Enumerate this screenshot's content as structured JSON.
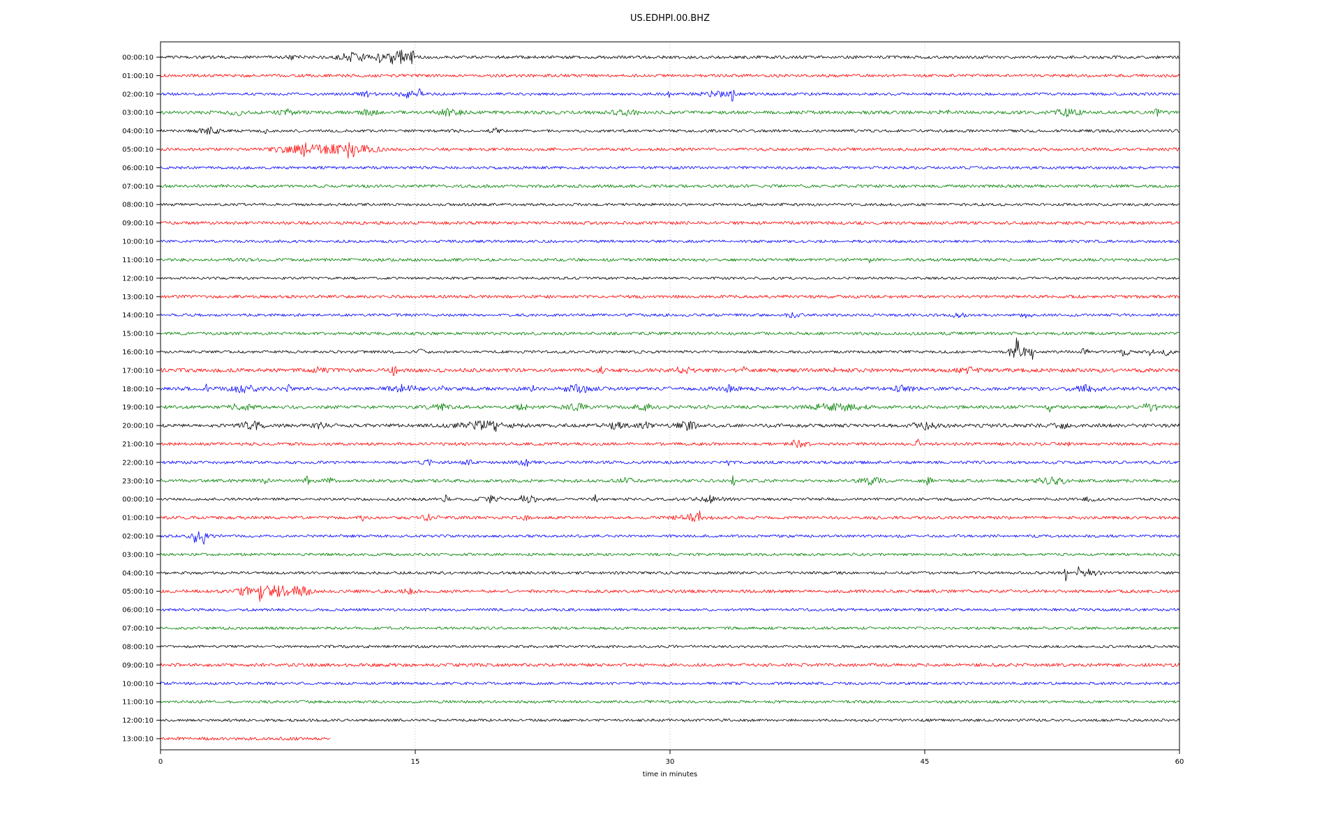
{
  "title": "US.EDHPI.00.BHZ",
  "xlabel": "time in minutes",
  "chart_data": {
    "type": "line",
    "subtype": "seismic-dayplot-helicorder",
    "station": "US.EDHPI.00.BHZ",
    "x_range_minutes": [
      0,
      60
    ],
    "x_ticks": [
      "0",
      "15",
      "30",
      "45",
      "60"
    ],
    "x_tick_values": [
      0,
      15,
      30,
      45,
      60
    ],
    "grid": "vertical dotted gridlines at 15, 30 and 45 minutes",
    "grid_color": "#b0b0b0",
    "color_cycle": [
      "#000000",
      "#ff0000",
      "#0000ff",
      "#008000"
    ],
    "rows": [
      {
        "label": "00:00:10",
        "color": "#000000",
        "noise": 2.2,
        "end": 60,
        "events": [
          [
            7.6,
            0.3,
            2.5
          ],
          [
            11.3,
            0.8,
            6
          ],
          [
            12.9,
            0.18,
            8
          ],
          [
            13.6,
            0.25,
            7
          ],
          [
            14.2,
            0.5,
            9
          ],
          [
            14.85,
            0.12,
            8
          ]
        ]
      },
      {
        "label": "01:00:10",
        "color": "#ff0000",
        "noise": 2.2,
        "end": 60,
        "events": []
      },
      {
        "label": "02:00:10",
        "color": "#0000ff",
        "noise": 2.0,
        "end": 60,
        "events": [
          [
            12.2,
            0.4,
            3
          ],
          [
            14.5,
            0.5,
            4
          ],
          [
            15.3,
            0.12,
            7
          ],
          [
            30.0,
            0.08,
            10
          ],
          [
            32.8,
            1.0,
            3
          ],
          [
            33.7,
            0.08,
            13
          ]
        ]
      },
      {
        "label": "03:00:10",
        "color": "#008000",
        "noise": 2.4,
        "end": 60,
        "events": [
          [
            4.5,
            0.4,
            3.5
          ],
          [
            7.4,
            0.5,
            3.5
          ],
          [
            12.3,
            0.5,
            3
          ],
          [
            17.0,
            0.8,
            3.5
          ],
          [
            27.4,
            0.7,
            3.5
          ],
          [
            46.2,
            0.3,
            3
          ],
          [
            53.4,
            0.8,
            4
          ],
          [
            58.7,
            0.15,
            5
          ]
        ]
      },
      {
        "label": "04:00:10",
        "color": "#000000",
        "noise": 2.0,
        "end": 60,
        "events": [
          [
            2.9,
            0.6,
            4
          ],
          [
            6.2,
            0.08,
            4
          ],
          [
            17.5,
            0.4,
            2.5
          ],
          [
            19.7,
            0.3,
            2.5
          ]
        ]
      },
      {
        "label": "05:00:10",
        "color": "#ff0000",
        "noise": 2.2,
        "end": 60,
        "events": [
          [
            7.5,
            0.9,
            4
          ],
          [
            8.4,
            0.3,
            6
          ],
          [
            9.2,
            0.8,
            5
          ],
          [
            10.3,
            0.6,
            5
          ],
          [
            11.0,
            0.1,
            21
          ],
          [
            11.35,
            0.1,
            11
          ],
          [
            11.9,
            0.4,
            4
          ],
          [
            12.6,
            0.4,
            3
          ]
        ]
      },
      {
        "label": "06:00:10",
        "color": "#0000ff",
        "noise": 2.0,
        "end": 60,
        "events": []
      },
      {
        "label": "07:00:10",
        "color": "#008000",
        "noise": 2.2,
        "end": 60,
        "events": []
      },
      {
        "label": "08:00:10",
        "color": "#000000",
        "noise": 2.0,
        "end": 60,
        "events": []
      },
      {
        "label": "09:00:10",
        "color": "#ff0000",
        "noise": 2.3,
        "end": 60,
        "events": []
      },
      {
        "label": "10:00:10",
        "color": "#0000ff",
        "noise": 2.0,
        "end": 60,
        "events": []
      },
      {
        "label": "11:00:10",
        "color": "#008000",
        "noise": 2.2,
        "end": 60,
        "events": [
          [
            41.8,
            0.08,
            3.5
          ]
        ]
      },
      {
        "label": "12:00:10",
        "color": "#000000",
        "noise": 1.8,
        "end": 60,
        "events": []
      },
      {
        "label": "13:00:10",
        "color": "#ff0000",
        "noise": 2.2,
        "end": 60,
        "events": []
      },
      {
        "label": "14:00:10",
        "color": "#0000ff",
        "noise": 2.0,
        "end": 60,
        "events": [
          [
            37.3,
            0.4,
            2.6
          ],
          [
            47.0,
            0.5,
            2.4
          ],
          [
            51.0,
            0.4,
            2.6
          ]
        ]
      },
      {
        "label": "15:00:10",
        "color": "#008000",
        "noise": 2.2,
        "end": 60,
        "events": []
      },
      {
        "label": "16:00:10",
        "color": "#000000",
        "noise": 2.0,
        "end": 60,
        "events": [
          [
            15.4,
            0.3,
            2.8
          ],
          [
            50.2,
            0.3,
            8
          ],
          [
            50.45,
            0.1,
            26
          ],
          [
            50.9,
            0.25,
            9
          ],
          [
            51.3,
            0.1,
            12
          ],
          [
            54.4,
            0.2,
            6
          ],
          [
            56.8,
            0.3,
            5
          ],
          [
            58.3,
            0.15,
            7
          ],
          [
            59.3,
            0.3,
            4
          ]
        ]
      },
      {
        "label": "17:00:10",
        "color": "#ff0000",
        "noise": 2.8,
        "end": 60,
        "events": [
          [
            9.3,
            0.5,
            3
          ],
          [
            13.75,
            0.15,
            6
          ],
          [
            26.0,
            0.3,
            3
          ],
          [
            30.8,
            0.5,
            3.5
          ],
          [
            34.4,
            0.1,
            5
          ],
          [
            39.8,
            0.15,
            4
          ],
          [
            47.5,
            0.5,
            3
          ]
        ]
      },
      {
        "label": "18:00:10",
        "color": "#0000ff",
        "noise": 2.6,
        "end": 60,
        "events": [
          [
            2.75,
            0.12,
            6
          ],
          [
            4.9,
            0.8,
            4
          ],
          [
            7.5,
            0.1,
            6
          ],
          [
            14.3,
            0.8,
            4
          ],
          [
            16.5,
            0.12,
            5
          ],
          [
            21.9,
            0.1,
            5
          ],
          [
            24.6,
            0.8,
            4
          ],
          [
            33.4,
            0.5,
            3.5
          ],
          [
            43.8,
            0.6,
            3.5
          ],
          [
            54.4,
            0.8,
            4
          ]
        ]
      },
      {
        "label": "19:00:10",
        "color": "#008000",
        "noise": 2.4,
        "end": 60,
        "events": [
          [
            4.7,
            0.7,
            4
          ],
          [
            16.4,
            0.5,
            4
          ],
          [
            21.3,
            0.3,
            3.5
          ],
          [
            24.5,
            0.7,
            3.5
          ],
          [
            28.5,
            0.6,
            3.5
          ],
          [
            32.2,
            0.1,
            5
          ],
          [
            39.8,
            1.4,
            4.5
          ],
          [
            52.3,
            0.12,
            6
          ],
          [
            58.3,
            0.5,
            4.5
          ]
        ]
      },
      {
        "label": "20:00:10",
        "color": "#000000",
        "noise": 2.6,
        "end": 60,
        "events": [
          [
            5.4,
            0.6,
            5
          ],
          [
            9.4,
            0.3,
            4
          ],
          [
            19.0,
            1.3,
            4.5
          ],
          [
            19.7,
            0.1,
            6
          ],
          [
            26.7,
            0.6,
            4
          ],
          [
            28.5,
            0.3,
            4
          ],
          [
            30.9,
            0.6,
            5
          ],
          [
            45.1,
            0.7,
            4.5
          ],
          [
            53.0,
            0.5,
            3
          ]
        ]
      },
      {
        "label": "21:00:10",
        "color": "#ff0000",
        "noise": 2.2,
        "end": 60,
        "events": [
          [
            37.4,
            0.12,
            8
          ],
          [
            37.7,
            0.4,
            3.5
          ],
          [
            44.6,
            0.12,
            6
          ],
          [
            53.3,
            0.2,
            3
          ]
        ]
      },
      {
        "label": "22:00:10",
        "color": "#0000ff",
        "noise": 2.2,
        "end": 60,
        "events": [
          [
            15.7,
            0.3,
            3
          ],
          [
            18.1,
            0.3,
            3
          ],
          [
            21.5,
            0.35,
            6
          ],
          [
            33.4,
            0.12,
            4
          ]
        ]
      },
      {
        "label": "23:00:10",
        "color": "#008000",
        "noise": 2.3,
        "end": 60,
        "events": [
          [
            6.2,
            0.5,
            3.5
          ],
          [
            8.6,
            0.12,
            8
          ],
          [
            10.0,
            0.3,
            3
          ],
          [
            27.5,
            0.5,
            3
          ],
          [
            33.7,
            0.1,
            9
          ],
          [
            41.8,
            0.6,
            4
          ],
          [
            45.2,
            0.18,
            5
          ],
          [
            52.5,
            1.0,
            3.5
          ]
        ]
      },
      {
        "label": "00:00:10",
        "color": "#000000",
        "noise": 2.0,
        "end": 60,
        "events": [
          [
            16.8,
            0.15,
            6
          ],
          [
            19.4,
            0.6,
            4
          ],
          [
            21.3,
            0.08,
            12
          ],
          [
            21.8,
            0.4,
            4
          ],
          [
            25.6,
            0.12,
            5
          ],
          [
            32.3,
            0.8,
            4
          ],
          [
            46.6,
            0.08,
            4
          ],
          [
            54.7,
            0.3,
            3
          ]
        ]
      },
      {
        "label": "01:00:10",
        "color": "#ff0000",
        "noise": 2.2,
        "end": 60,
        "events": [
          [
            11.9,
            0.08,
            4
          ],
          [
            15.9,
            0.5,
            3.5
          ],
          [
            21.5,
            0.1,
            7
          ],
          [
            21.85,
            0.1,
            6
          ],
          [
            31.2,
            0.8,
            4
          ],
          [
            31.7,
            0.1,
            8
          ]
        ]
      },
      {
        "label": "02:00:10",
        "color": "#0000ff",
        "noise": 2.0,
        "end": 60,
        "events": [
          [
            2.05,
            0.1,
            7
          ],
          [
            2.3,
            0.5,
            5
          ],
          [
            2.55,
            0.1,
            7
          ]
        ]
      },
      {
        "label": "03:00:10",
        "color": "#008000",
        "noise": 2.0,
        "end": 60,
        "events": []
      },
      {
        "label": "04:00:10",
        "color": "#000000",
        "noise": 2.0,
        "end": 60,
        "events": [
          [
            53.3,
            0.12,
            10
          ],
          [
            54.0,
            0.12,
            9
          ],
          [
            54.6,
            0.3,
            5
          ],
          [
            55.3,
            0.4,
            3
          ]
        ]
      },
      {
        "label": "05:00:10",
        "color": "#ff0000",
        "noise": 2.3,
        "end": 60,
        "events": [
          [
            5.0,
            0.5,
            5
          ],
          [
            5.9,
            0.1,
            22
          ],
          [
            6.25,
            0.09,
            24
          ],
          [
            6.8,
            0.6,
            7
          ],
          [
            7.3,
            0.1,
            9
          ],
          [
            7.9,
            0.5,
            6
          ],
          [
            8.6,
            0.4,
            4
          ],
          [
            14.6,
            0.3,
            3
          ]
        ]
      },
      {
        "label": "06:00:10",
        "color": "#0000ff",
        "noise": 2.0,
        "end": 60,
        "events": []
      },
      {
        "label": "07:00:10",
        "color": "#008000",
        "noise": 2.0,
        "end": 60,
        "events": []
      },
      {
        "label": "08:00:10",
        "color": "#000000",
        "noise": 1.9,
        "end": 60,
        "events": []
      },
      {
        "label": "09:00:10",
        "color": "#ff0000",
        "noise": 2.4,
        "end": 60,
        "events": []
      },
      {
        "label": "10:00:10",
        "color": "#0000ff",
        "noise": 2.0,
        "end": 60,
        "events": []
      },
      {
        "label": "11:00:10",
        "color": "#008000",
        "noise": 2.0,
        "end": 60,
        "events": []
      },
      {
        "label": "12:00:10",
        "color": "#000000",
        "noise": 1.9,
        "end": 60,
        "events": []
      },
      {
        "label": "13:00:10",
        "color": "#ff0000",
        "noise": 2.2,
        "end": 10,
        "events": []
      }
    ]
  }
}
